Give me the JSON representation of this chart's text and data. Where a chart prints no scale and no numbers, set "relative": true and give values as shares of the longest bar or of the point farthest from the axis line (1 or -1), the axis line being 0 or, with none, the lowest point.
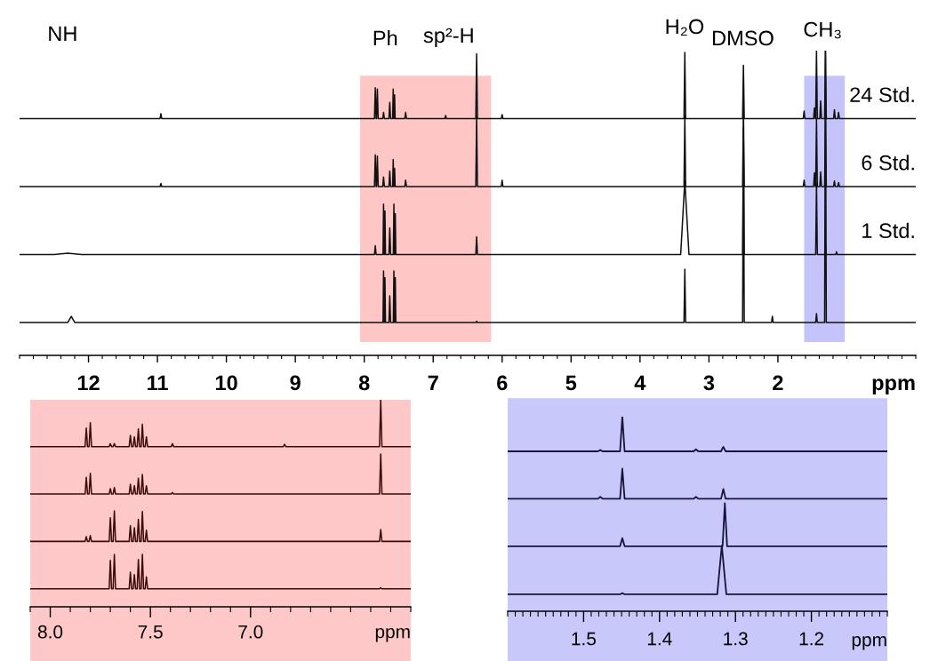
{
  "chart_data": [
    {
      "type": "line",
      "relative": true,
      "xlabel": "ppm",
      "xlim": [
        13.0,
        0.0
      ],
      "xticks": [
        12,
        11,
        10,
        9,
        8,
        7,
        6,
        5,
        4,
        3,
        2
      ],
      "bands": [
        {
          "axis": "x",
          "from": 8.06,
          "to": 6.16,
          "color": "#ffc6c6"
        },
        {
          "axis": "x",
          "from": 1.62,
          "to": 1.03,
          "color": "#c4c4fa"
        }
      ],
      "annotations": [
        "NH",
        "Ph",
        "sp²-H",
        "H₂O",
        "DMSO",
        "CH₃"
      ],
      "series": [
        {
          "name": "24 Std.",
          "color": "#111111",
          "x": [
            13.0,
            10.962,
            10.95,
            10.938,
            7.852,
            7.84,
            7.828,
            7.822,
            7.81,
            7.798,
            7.732,
            7.72,
            7.708,
            7.642,
            7.63,
            7.618,
            7.588,
            7.58,
            7.572,
            7.568,
            7.56,
            7.552,
            7.412,
            7.4,
            7.388,
            6.832,
            6.82,
            6.808,
            6.382,
            6.37,
            6.358,
            6.012,
            6.0,
            5.988,
            3.362,
            3.35,
            3.338,
            2.512,
            2.5,
            2.488,
            1.632,
            1.62,
            1.608,
            1.482,
            1.47,
            1.458,
            1.452,
            1.44,
            1.428,
            1.392,
            1.38,
            1.368,
            1.322,
            1.31,
            1.298,
            1.192,
            1.18,
            1.168,
            1.132,
            1.12,
            1.108,
            0.0
          ],
          "values": [
            0.777,
            0.777,
            0.793,
            0.777,
            0.777,
            0.878,
            0.777,
            0.777,
            0.874,
            0.777,
            0.777,
            0.797,
            0.777,
            0.777,
            0.83,
            0.777,
            0.777,
            0.874,
            0.777,
            0.777,
            0.855,
            0.777,
            0.777,
            0.797,
            0.777,
            0.777,
            0.787,
            0.777,
            0.777,
            0.99,
            0.777,
            0.777,
            0.79,
            0.777,
            0.777,
            0.994,
            0.777,
            0.777,
            0.952,
            0.777,
            0.777,
            0.802,
            0.777,
            0.777,
            0.812,
            0.777,
            0.777,
            1.0,
            0.777,
            0.777,
            0.835,
            0.777,
            0.777,
            1.0,
            0.777,
            0.777,
            0.806,
            0.777,
            0.777,
            0.797,
            0.777,
            0.777
          ]
        },
        {
          "name": "6 Std.",
          "color": "#111111",
          "x": [
            13.0,
            10.962,
            10.95,
            10.938,
            7.852,
            7.84,
            7.828,
            7.822,
            7.81,
            7.798,
            7.732,
            7.72,
            7.708,
            7.642,
            7.63,
            7.618,
            7.588,
            7.58,
            7.572,
            7.568,
            7.56,
            7.552,
            7.412,
            7.4,
            7.388,
            6.382,
            6.37,
            6.358,
            6.012,
            6.0,
            5.988,
            3.362,
            3.35,
            3.338,
            2.512,
            2.5,
            2.488,
            1.632,
            1.62,
            1.608,
            1.482,
            1.47,
            1.458,
            1.452,
            1.44,
            1.428,
            1.392,
            1.38,
            1.368,
            1.322,
            1.31,
            1.298,
            1.192,
            1.18,
            1.168,
            1.132,
            1.12,
            1.108,
            0.0
          ],
          "values": [
            0.554,
            0.554,
            0.564,
            0.554,
            0.554,
            0.658,
            0.554,
            0.554,
            0.654,
            0.554,
            0.554,
            0.585,
            0.554,
            0.554,
            0.605,
            0.554,
            0.554,
            0.643,
            0.554,
            0.554,
            0.614,
            0.554,
            0.554,
            0.575,
            0.554,
            0.554,
            0.785,
            0.554,
            0.554,
            0.575,
            0.554,
            0.554,
            0.787,
            0.554,
            0.554,
            0.815,
            0.554,
            0.554,
            0.575,
            0.554,
            0.554,
            0.599,
            0.554,
            0.554,
            0.777,
            0.554,
            0.554,
            0.602,
            0.554,
            0.554,
            0.777,
            0.554,
            0.554,
            0.572,
            0.554,
            0.554,
            0.567,
            0.554,
            0.554
          ]
        },
        {
          "name": "1 Std.",
          "color": "#111111",
          "x": [
            13.0,
            12.5,
            12.3,
            12.1,
            7.852,
            7.84,
            7.828,
            7.728,
            7.72,
            7.712,
            7.708,
            7.7,
            7.692,
            7.642,
            7.63,
            7.618,
            7.578,
            7.57,
            7.562,
            7.558,
            7.55,
            7.542,
            6.382,
            6.37,
            6.358,
            3.41,
            3.35,
            3.29,
            2.512,
            2.5,
            2.488,
            1.452,
            1.44,
            1.428,
            1.322,
            1.31,
            1.298,
            1.162,
            1.15,
            1.138,
            0.0
          ],
          "values": [
            0.331,
            0.331,
            0.335,
            0.331,
            0.331,
            0.36,
            0.331,
            0.331,
            0.496,
            0.331,
            0.331,
            0.474,
            0.331,
            0.331,
            0.418,
            0.331,
            0.331,
            0.496,
            0.331,
            0.331,
            0.465,
            0.331,
            0.331,
            0.389,
            0.331,
            0.331,
            0.574,
            0.331,
            0.331,
            0.748,
            0.331,
            0.331,
            0.564,
            0.331,
            0.331,
            0.36,
            0.331,
            0.331,
            0.34,
            0.331,
            0.331
          ]
        },
        {
          "color": "#111111",
          "x": [
            13.0,
            12.3,
            12.25,
            12.2,
            7.728,
            7.72,
            7.712,
            7.708,
            7.7,
            7.692,
            7.642,
            7.63,
            7.618,
            7.578,
            7.57,
            7.562,
            7.558,
            7.55,
            7.542,
            6.382,
            6.37,
            6.358,
            3.362,
            3.35,
            3.338,
            2.512,
            2.5,
            2.488,
            2.092,
            2.08,
            2.068,
            1.452,
            1.44,
            1.428,
            1.322,
            1.31,
            1.298,
            0.0
          ],
          "values": [
            0.108,
            0.108,
            0.128,
            0.108,
            0.108,
            0.277,
            0.108,
            0.108,
            0.255,
            0.108,
            0.108,
            0.195,
            0.108,
            0.108,
            0.277,
            0.108,
            0.108,
            0.255,
            0.108,
            0.108,
            0.112,
            0.108,
            0.108,
            0.283,
            0.108,
            0.108,
            0.732,
            0.108,
            0.108,
            0.128,
            0.108,
            0.108,
            0.137,
            0.108,
            0.108,
            1.0,
            0.108,
            0.108
          ]
        }
      ]
    },
    {
      "type": "line",
      "relative": true,
      "xlabel": "ppm",
      "xlim": [
        8.1,
        6.2
      ],
      "xticks": [
        {
          "value": 8,
          "label": "8.0"
        },
        7.5,
        {
          "value": 7,
          "label": "7.0"
        }
      ],
      "bands": [
        {
          "axis": "x",
          "from": 8.1,
          "to": 6.2,
          "color": "#ffc8c8"
        }
      ],
      "series": [
        {
          "color": "#3b0a0a",
          "x": [
            8.1,
            7.826,
            7.82,
            7.814,
            7.806,
            7.8,
            7.794,
            7.706,
            7.7,
            7.694,
            7.686,
            7.68,
            7.674,
            7.606,
            7.6,
            7.594,
            7.586,
            7.58,
            7.574,
            7.566,
            7.56,
            7.554,
            7.546,
            7.54,
            7.534,
            7.526,
            7.52,
            7.514,
            7.396,
            7.39,
            7.384,
            6.836,
            6.83,
            6.824,
            6.356,
            6.35,
            6.344,
            6.2
          ],
          "values": [
            0.774,
            0.774,
            0.864,
            0.774,
            0.774,
            0.889,
            0.774,
            0.774,
            0.788,
            0.774,
            0.774,
            0.788,
            0.774,
            0.774,
            0.828,
            0.774,
            0.774,
            0.821,
            0.774,
            0.774,
            0.859,
            0.774,
            0.774,
            0.882,
            0.774,
            0.774,
            0.821,
            0.774,
            0.774,
            0.788,
            0.774,
            0.774,
            0.785,
            0.774,
            0.774,
            1.0,
            0.774,
            0.774
          ]
        },
        {
          "color": "#3b0a0a",
          "x": [
            8.1,
            7.826,
            7.82,
            7.814,
            7.806,
            7.8,
            7.794,
            7.706,
            7.7,
            7.694,
            7.686,
            7.68,
            7.674,
            7.606,
            7.6,
            7.594,
            7.586,
            7.58,
            7.574,
            7.566,
            7.56,
            7.554,
            7.546,
            7.54,
            7.534,
            7.526,
            7.52,
            7.514,
            7.396,
            7.39,
            7.384,
            6.356,
            6.35,
            6.344,
            6.2
          ],
          "values": [
            0.545,
            0.545,
            0.625,
            0.545,
            0.545,
            0.645,
            0.545,
            0.545,
            0.571,
            0.545,
            0.545,
            0.576,
            0.545,
            0.545,
            0.592,
            0.545,
            0.545,
            0.585,
            0.545,
            0.545,
            0.621,
            0.545,
            0.545,
            0.639,
            0.545,
            0.545,
            0.585,
            0.545,
            0.545,
            0.552,
            0.545,
            0.545,
            0.738,
            0.545,
            0.545
          ]
        },
        {
          "color": "#3b0a0a",
          "x": [
            8.1,
            7.826,
            7.82,
            7.814,
            7.806,
            7.8,
            7.794,
            7.706,
            7.7,
            7.694,
            7.686,
            7.68,
            7.674,
            7.606,
            7.6,
            7.594,
            7.586,
            7.58,
            7.574,
            7.566,
            7.56,
            7.554,
            7.546,
            7.54,
            7.534,
            7.526,
            7.52,
            7.514,
            6.356,
            6.35,
            6.344,
            6.2
          ],
          "values": [
            0.316,
            0.316,
            0.339,
            0.316,
            0.316,
            0.344,
            0.316,
            0.316,
            0.43,
            0.316,
            0.316,
            0.463,
            0.316,
            0.316,
            0.392,
            0.316,
            0.316,
            0.382,
            0.316,
            0.316,
            0.423,
            0.316,
            0.316,
            0.46,
            0.316,
            0.316,
            0.37,
            0.316,
            0.316,
            0.373,
            0.316,
            0.316
          ]
        },
        {
          "color": "#3b0a0a",
          "x": [
            8.1,
            7.706,
            7.7,
            7.694,
            7.686,
            7.68,
            7.674,
            7.606,
            7.6,
            7.594,
            7.586,
            7.58,
            7.574,
            7.566,
            7.56,
            7.554,
            7.546,
            7.54,
            7.534,
            7.526,
            7.52,
            7.514,
            6.356,
            6.35,
            6.344,
            6.2
          ],
          "values": [
            0.087,
            0.087,
            0.224,
            0.087,
            0.087,
            0.253,
            0.087,
            0.087,
            0.167,
            0.087,
            0.087,
            0.155,
            0.087,
            0.087,
            0.228,
            0.087,
            0.087,
            0.253,
            0.087,
            0.087,
            0.145,
            0.087,
            0.087,
            0.092,
            0.087,
            0.087
          ]
        }
      ]
    },
    {
      "type": "line",
      "relative": true,
      "xlabel": "ppm",
      "xlim": [
        1.6,
        1.1
      ],
      "xticks": [
        1.5,
        1.4,
        1.3,
        1.2
      ],
      "bands": [
        {
          "axis": "x",
          "from": 1.6,
          "to": 1.1,
          "color": "#c8c8fa"
        }
      ],
      "series": [
        {
          "color": "#14143c",
          "x": [
            1.6,
            1.481,
            1.478,
            1.475,
            1.452,
            1.449,
            1.446,
            1.355,
            1.352,
            1.349,
            1.319,
            1.316,
            1.313,
            1.1
          ],
          "values": [
            0.822,
            0.822,
            0.829,
            0.822,
            0.822,
            1.0,
            0.822,
            0.822,
            0.832,
            0.822,
            0.822,
            0.845,
            0.822,
            0.822
          ]
        },
        {
          "color": "#14143c",
          "x": [
            1.6,
            1.481,
            1.478,
            1.475,
            1.452,
            1.449,
            1.446,
            1.355,
            1.352,
            1.349,
            1.319,
            1.316,
            1.313,
            1.1
          ],
          "values": [
            0.578,
            0.578,
            0.588,
            0.578,
            0.578,
            0.733,
            0.578,
            0.578,
            0.588,
            0.578,
            0.578,
            0.628,
            0.578,
            0.578
          ]
        },
        {
          "color": "#14143c",
          "x": [
            1.6,
            1.452,
            1.449,
            1.446,
            1.317,
            1.314,
            1.311,
            1.1
          ],
          "values": [
            0.334,
            0.334,
            0.376,
            0.334,
            0.334,
            0.555,
            0.334,
            0.334
          ]
        },
        {
          "color": "#14143c",
          "x": [
            1.6,
            1.452,
            1.449,
            1.446,
            1.324,
            1.318,
            1.312,
            1.1
          ],
          "values": [
            0.087,
            0.087,
            0.093,
            0.087,
            0.087,
            0.337,
            0.087,
            0.087
          ]
        }
      ]
    }
  ]
}
